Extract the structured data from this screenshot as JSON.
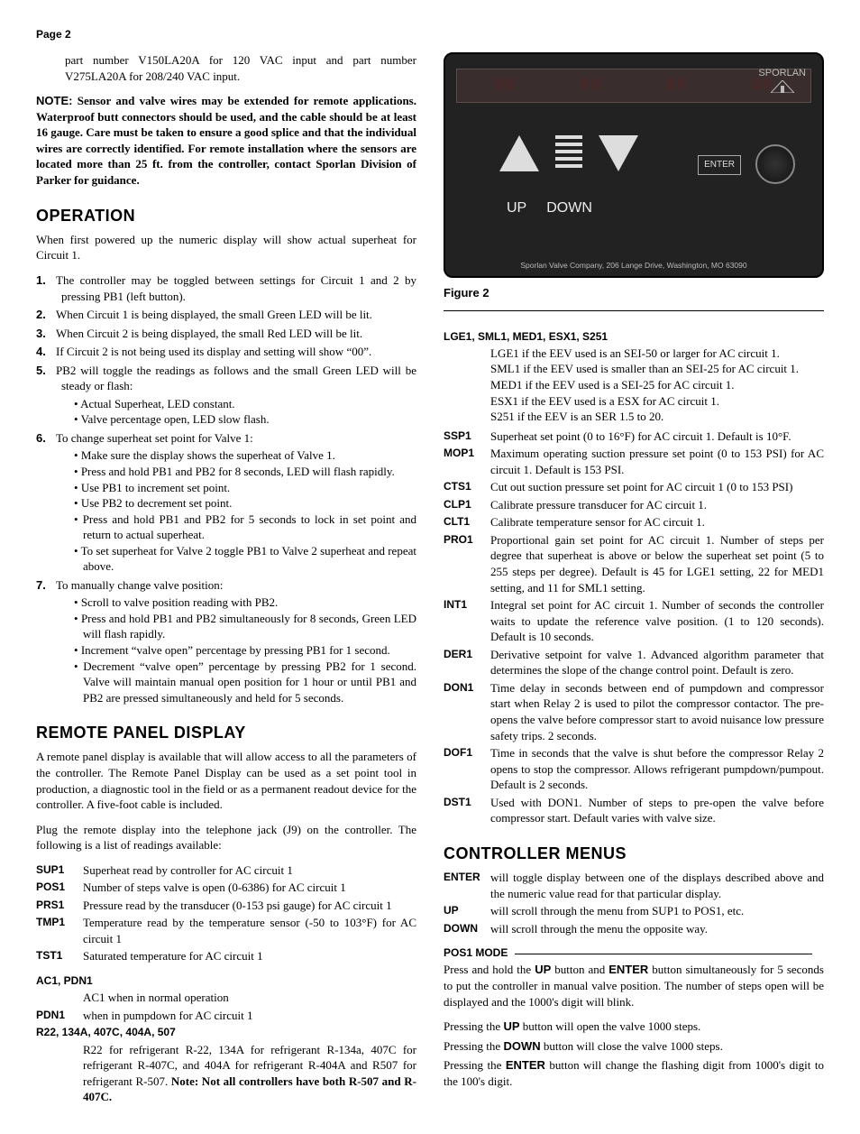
{
  "page_header": "Page 2",
  "intro_para": "part number V150LA20A for 120 VAC input and part number V275LA20A for 208/240 VAC input.",
  "note_label": "NOTE:",
  "note_body": "Sensor and valve wires may be extended for remote applications. Waterproof butt connectors should be used, and the cable should be at least 16 gauge. Care must be taken to ensure a good splice and that the individual wires are correctly identified. For remote installation where the sensors are located more than 25 ft. from the controller, contact Sporlan Division of Parker for guidance.",
  "operation": {
    "heading": "OPERATION",
    "lead": "When first powered up the numeric display will show actual superheat for Circuit 1.",
    "items": [
      {
        "n": "1.",
        "t": "The controller may be toggled between settings for Circuit 1 and 2 by pressing PB1 (left button)."
      },
      {
        "n": "2.",
        "t": "When Circuit 1 is being displayed, the small Green LED will be lit."
      },
      {
        "n": "3.",
        "t": "When Circuit 2 is being displayed, the small Red LED will be lit."
      },
      {
        "n": "4.",
        "t": "If Circuit 2 is not being used its display and setting will show “00”."
      },
      {
        "n": "5.",
        "t": "PB2 will toggle the readings as follows and the small Green LED will be steady or flash:",
        "sub": [
          "Actual Superheat, LED constant.",
          "Valve percentage open, LED slow flash."
        ]
      },
      {
        "n": "6.",
        "t": "To change superheat set point for Valve 1:",
        "sub": [
          "Make sure the display shows the superheat of Valve 1.",
          "Press and hold PB1 and PB2 for 8 seconds, LED will flash rapidly.",
          "Use PB1 to increment set point.",
          "Use PB2 to decrement set point.",
          "Press and hold PB1 and PB2 for 5 seconds to lock in set point and return to actual superheat.",
          "To set superheat for Valve 2 toggle PB1 to Valve 2 superheat and repeat above."
        ]
      },
      {
        "n": "7.",
        "t": "To manually change valve position:",
        "sub": [
          "Scroll to valve position reading with PB2.",
          "Press and hold PB1 and PB2 simultaneously for 8 seconds, Green LED will flash rapidly.",
          "Increment “valve open” percentage by pressing PB1 for 1 second.",
          "Decrement “valve open” percentage by pressing PB2 for 1 second. Valve will maintain manual open position for 1 hour or until PB1 and PB2 are pressed simultaneously and held for 5 seconds."
        ]
      }
    ]
  },
  "remote": {
    "heading": "REMOTE PANEL DISPLAY",
    "p1": "A remote panel display is available that will allow access to all the parameters of the controller. The Remote Panel Display can be used as a set point tool in production, a diagnostic tool in the field or as a permanent readout device for the controller. A five-foot cable is included.",
    "p2": "Plug the remote display into the telephone jack (J9) on the controller. The following is a list of readings available:",
    "defs1": [
      {
        "k": "SUP1",
        "v": "Superheat read by controller for AC circuit 1"
      },
      {
        "k": "POS1",
        "v": "Number of steps valve is open (0-6386) for AC circuit 1"
      },
      {
        "k": "PRS1",
        "v": "Pressure read by the transducer (0-153 psi gauge) for AC circuit 1"
      },
      {
        "k": "TMP1",
        "v": "Temperature read by the temperature sensor (-50 to 103°F) for AC circuit 1"
      },
      {
        "k": "TST1",
        "v": "Saturated temperature for AC circuit 1"
      }
    ],
    "ac1_header": "AC1, PDN1",
    "ac1_line": "AC1 when in normal operation",
    "pdn1_k": "PDN1",
    "pdn1_v": "when in pumpdown for AC circuit 1",
    "r22_header": "R22, 134A, 407C, 404A, 507",
    "r22_body": "R22 for refrigerant R-22, 134A for refrigerant R-134a, 407C for refrigerant R-407C, and 404A for refrigerant R-404A and R507 for refrigerant R-507. ",
    "r22_bold": "Note: Not all controllers have both R-507 and R-407C."
  },
  "figure": {
    "brand": "SPORLAN",
    "up": "UP",
    "down": "DOWN",
    "enter": "ENTER",
    "footer": "Sporlan Valve Company, 206 Lange Drive, Washington, MO 63090",
    "caption": "Figure 2"
  },
  "rightdefs": {
    "group1_header": "LGE1, SML1, MED1, ESX1, S251",
    "group1_lines": [
      "LGE1 if the EEV used is an SEI-50 or larger for AC circuit 1.",
      "SML1 if the EEV used is smaller than an SEI-25 for AC circuit 1.",
      "MED1 if the EEV used is a SEI-25 for AC circuit 1.",
      "ESX1 if the EEV used is a ESX for AC circuit 1.",
      "S251 if the EEV is an SER 1.5 to 20."
    ],
    "rows": [
      {
        "k": "SSP1",
        "v": "Superheat set point (0 to 16°F) for AC circuit 1. Default is 10°F."
      },
      {
        "k": "MOP1",
        "v": "Maximum operating suction pressure set point (0 to 153 PSI) for AC circuit 1. Default is 153 PSI."
      },
      {
        "k": "CTS1",
        "v": "Cut out suction pressure set point for AC circuit 1 (0 to 153 PSI)"
      },
      {
        "k": "CLP1",
        "v": "Calibrate pressure transducer for AC circuit 1."
      },
      {
        "k": "CLT1",
        "v": "Calibrate temperature sensor for AC circuit 1."
      },
      {
        "k": "PRO1",
        "v": "Proportional gain set point for AC circuit 1. Number of steps per degree that superheat is above or below the superheat set point (5 to 255 steps per degree). Default is 45 for LGE1 setting, 22 for MED1 setting, and 11 for SML1 setting."
      },
      {
        "k": "INT1",
        "v": "Integral set point for AC circuit 1. Number of seconds the controller waits to update the reference valve position. (1 to 120 seconds). Default is 10 seconds."
      },
      {
        "k": "DER1",
        "v": "Derivative setpoint for valve 1. Advanced algorithm parameter that determines the slope of the change control point. Default is zero."
      },
      {
        "k": "DON1",
        "v": "Time delay in seconds between end of pumpdown and compressor start when Relay 2 is used to pilot the compressor contactor. The pre-opens the valve before compressor start to avoid nuisance low pressure safety trips. 2 seconds."
      },
      {
        "k": "DOF1",
        "v": "Time in seconds that the valve is shut before the compressor Relay 2 opens to stop the compressor. Allows refrigerant pumpdown/pumpout. Default is 2 seconds."
      },
      {
        "k": "DST1",
        "v": "Used with DON1. Number of steps to pre-open the valve before compressor start. Default varies with valve size."
      }
    ]
  },
  "menus": {
    "heading": "CONTROLLER MENUS",
    "rows": [
      {
        "k": "ENTER",
        "v": "will toggle display between one of the displays described above and the numeric value read for that particular display."
      },
      {
        "k": "UP",
        "v": "will scroll through the menu from SUP1 to POS1, etc."
      },
      {
        "k": "DOWN",
        "v": "will scroll through the menu the opposite way."
      }
    ],
    "pos1_header": "POS1 MODE",
    "pos1_p1a": "Press and hold the ",
    "pos1_p1b": " button and ",
    "pos1_p1c": " button simultaneously for 5 seconds to put the controller in manual valve position. The number of steps open will be displayed and the 1000's digit will blink.",
    "up_word": "UP",
    "enter_word": "ENTER",
    "down_word": "DOWN",
    "l1a": "Pressing the ",
    "l1b": " button will open the valve 1000 steps.",
    "l2a": "Pressing the ",
    "l2b": " button will close the valve 1000 steps.",
    "l3a": "Pressing the ",
    "l3b": " button will change the flashing digit from 1000's digit to the 100's digit."
  }
}
